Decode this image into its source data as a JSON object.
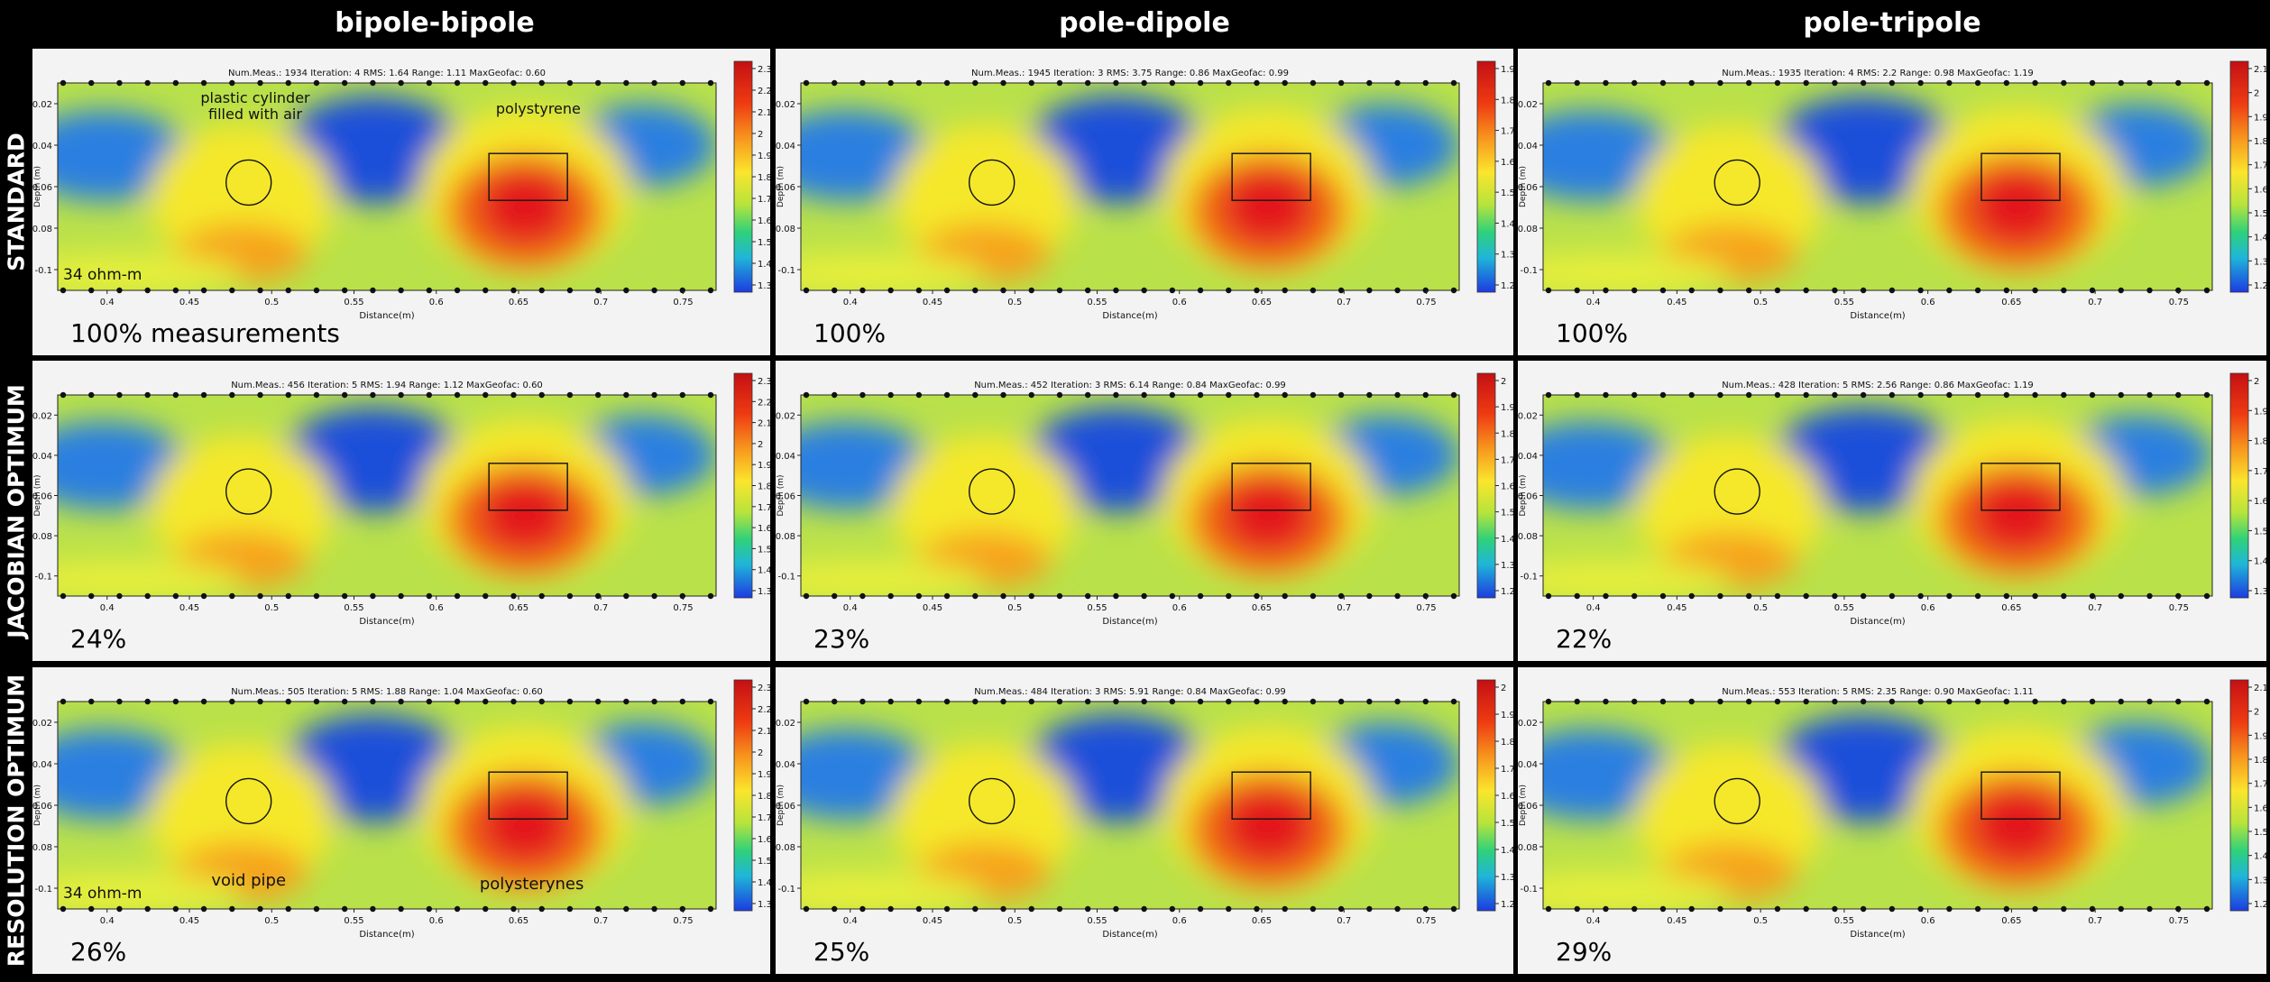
{
  "columns": [
    "bipole-bipole",
    "pole-dipole",
    "pole-tripole"
  ],
  "rows": [
    "STANDARD",
    "JACOBIAN OPTIMUM",
    "RESOLUTION OPTIMUM"
  ],
  "annotations": {
    "cylinder_line1": "plastic cylinder",
    "cylinder_line2": "filled with air",
    "polystyrene": "polystyrene",
    "void_pipe": "void pipe",
    "polysterynes": "polysterynes",
    "ohm_label": "34 ohm-m"
  },
  "colors": {
    "low": "#1f3bd9",
    "mid": "#f5e82a",
    "high": "#e3161a",
    "target_outline": "#111111"
  },
  "chart_data": [
    {
      "type": "heatmap",
      "row": "STANDARD",
      "col": "bipole-bipole",
      "title": "Num.Meas.: 1934   Iteration: 4   RMS: 1.64   Range: 1.11   MaxGeofac: 0.60",
      "percent": "100%  measurements",
      "xlabel": "Distance(m)",
      "ylabel": "Depth (m)",
      "x_ticks": [
        "0.4",
        "0.45",
        "0.5",
        "0.55",
        "0.6",
        "0.65",
        "0.7",
        "0.75"
      ],
      "y_ticks": [
        "-0.02",
        "-0.04",
        "-0.06",
        "-0.08",
        "-0.1"
      ],
      "colorbar_ticks": [
        "2.3",
        "2.2",
        "2.1",
        "2",
        "1.9",
        "1.8",
        "1.7",
        "1.6",
        "1.5",
        "1.4",
        "1.3"
      ],
      "xlim": [
        0.37,
        0.77
      ],
      "ylim": [
        -0.11,
        -0.01
      ]
    },
    {
      "type": "heatmap",
      "row": "STANDARD",
      "col": "pole-dipole",
      "title": "Num.Meas.: 1945   Iteration: 3   RMS: 3.75   Range: 0.86   MaxGeofac: 0.99",
      "percent": "100%",
      "xlabel": "Distance(m)",
      "ylabel": "Depth (m)",
      "x_ticks": [
        "0.4",
        "0.45",
        "0.5",
        "0.55",
        "0.6",
        "0.65",
        "0.7",
        "0.75"
      ],
      "y_ticks": [
        "-0.02",
        "-0.04",
        "-0.06",
        "-0.08",
        "-0.1"
      ],
      "colorbar_ticks": [
        "1.9",
        "1.8",
        "1.7",
        "1.6",
        "1.5",
        "1.4",
        "1.3",
        "1.2"
      ],
      "xlim": [
        0.37,
        0.77
      ],
      "ylim": [
        -0.11,
        -0.01
      ]
    },
    {
      "type": "heatmap",
      "row": "STANDARD",
      "col": "pole-tripole",
      "title": "Num.Meas.: 1935   Iteration: 4   RMS: 2.2   Range: 0.98   MaxGeofac: 1.19",
      "percent": "100%",
      "xlabel": "Distance(m)",
      "ylabel": "Depth (m)",
      "x_ticks": [
        "0.4",
        "0.45",
        "0.5",
        "0.55",
        "0.6",
        "0.65",
        "0.7",
        "0.75"
      ],
      "y_ticks": [
        "-0.02",
        "-0.04",
        "-0.06",
        "-0.08",
        "-0.1"
      ],
      "colorbar_ticks": [
        "2.1",
        "2",
        "1.9",
        "1.8",
        "1.7",
        "1.6",
        "1.5",
        "1.4",
        "1.3",
        "1.2"
      ],
      "xlim": [
        0.37,
        0.77
      ],
      "ylim": [
        -0.11,
        -0.01
      ]
    },
    {
      "type": "heatmap",
      "row": "JACOBIAN OPTIMUM",
      "col": "bipole-bipole",
      "title": "Num.Meas.: 456   Iteration: 5   RMS: 1.94   Range: 1.12   MaxGeofac: 0.60",
      "percent": "24%",
      "xlabel": "Distance(m)",
      "ylabel": "Depth (m)",
      "x_ticks": [
        "0.4",
        "0.45",
        "0.5",
        "0.55",
        "0.6",
        "0.65",
        "0.7",
        "0.75"
      ],
      "y_ticks": [
        "-0.02",
        "-0.04",
        "-0.06",
        "-0.08",
        "-0.1"
      ],
      "colorbar_ticks": [
        "2.3",
        "2.2",
        "2.1",
        "2",
        "1.9",
        "1.8",
        "1.7",
        "1.6",
        "1.5",
        "1.4",
        "1.3"
      ],
      "xlim": [
        0.37,
        0.77
      ],
      "ylim": [
        -0.11,
        -0.01
      ]
    },
    {
      "type": "heatmap",
      "row": "JACOBIAN OPTIMUM",
      "col": "pole-dipole",
      "title": "Num.Meas.: 452   Iteration: 3   RMS: 6.14   Range: 0.84   MaxGeofac: 0.99",
      "percent": "23%",
      "xlabel": "Distance(m)",
      "ylabel": "Depth (m)",
      "x_ticks": [
        "0.4",
        "0.45",
        "0.5",
        "0.55",
        "0.6",
        "0.65",
        "0.7",
        "0.75"
      ],
      "y_ticks": [
        "-0.02",
        "-0.04",
        "-0.06",
        "-0.08",
        "-0.1"
      ],
      "colorbar_ticks": [
        "2",
        "1.9",
        "1.8",
        "1.7",
        "1.6",
        "1.5",
        "1.4",
        "1.3",
        "1.2"
      ],
      "xlim": [
        0.37,
        0.77
      ],
      "ylim": [
        -0.11,
        -0.01
      ]
    },
    {
      "type": "heatmap",
      "row": "JACOBIAN OPTIMUM",
      "col": "pole-tripole",
      "title": "Num.Meas.: 428   Iteration: 5   RMS: 2.56   Range: 0.86   MaxGeofac: 1.19",
      "percent": "22%",
      "xlabel": "Distance(m)",
      "ylabel": "Depth (m)",
      "x_ticks": [
        "0.4",
        "0.45",
        "0.5",
        "0.55",
        "0.6",
        "0.65",
        "0.7",
        "0.75"
      ],
      "y_ticks": [
        "-0.02",
        "-0.04",
        "-0.06",
        "-0.08",
        "-0.1"
      ],
      "colorbar_ticks": [
        "2",
        "1.9",
        "1.8",
        "1.7",
        "1.6",
        "1.5",
        "1.4",
        "1.3"
      ],
      "xlim": [
        0.37,
        0.77
      ],
      "ylim": [
        -0.11,
        -0.01
      ]
    },
    {
      "type": "heatmap",
      "row": "RESOLUTION OPTIMUM",
      "col": "bipole-bipole",
      "title": "Num.Meas.: 505   Iteration: 5   RMS: 1.88   Range: 1.04   MaxGeofac: 0.60",
      "percent": "26%",
      "xlabel": "Distance(m)",
      "ylabel": "Depth (m)",
      "x_ticks": [
        "0.4",
        "0.45",
        "0.5",
        "0.55",
        "0.6",
        "0.65",
        "0.7",
        "0.75"
      ],
      "y_ticks": [
        "-0.02",
        "-0.04",
        "-0.06",
        "-0.08",
        "-0.1"
      ],
      "colorbar_ticks": [
        "2.3",
        "2.2",
        "2.1",
        "2",
        "1.9",
        "1.8",
        "1.7",
        "1.6",
        "1.5",
        "1.4",
        "1.3"
      ],
      "xlim": [
        0.37,
        0.77
      ],
      "ylim": [
        -0.11,
        -0.01
      ]
    },
    {
      "type": "heatmap",
      "row": "RESOLUTION OPTIMUM",
      "col": "pole-dipole",
      "title": "Num.Meas.: 484   Iteration: 3   RMS: 5.91   Range: 0.84   MaxGeofac: 0.99",
      "percent": "25%",
      "xlabel": "Distance(m)",
      "ylabel": "Depth (m)",
      "x_ticks": [
        "0.4",
        "0.45",
        "0.5",
        "0.55",
        "0.6",
        "0.65",
        "0.7",
        "0.75"
      ],
      "y_ticks": [
        "-0.02",
        "-0.04",
        "-0.06",
        "-0.08",
        "-0.1"
      ],
      "colorbar_ticks": [
        "2",
        "1.9",
        "1.8",
        "1.7",
        "1.6",
        "1.5",
        "1.4",
        "1.3",
        "1.2"
      ],
      "xlim": [
        0.37,
        0.77
      ],
      "ylim": [
        -0.11,
        -0.01
      ]
    },
    {
      "type": "heatmap",
      "row": "RESOLUTION OPTIMUM",
      "col": "pole-tripole",
      "title": "Num.Meas.: 553   Iteration: 5   RMS: 2.35   Range: 0.90   MaxGeofac: 1.11",
      "percent": "29%",
      "xlabel": "Distance(m)",
      "ylabel": "Depth (m)",
      "x_ticks": [
        "0.4",
        "0.45",
        "0.5",
        "0.55",
        "0.6",
        "0.65",
        "0.7",
        "0.75"
      ],
      "y_ticks": [
        "-0.02",
        "-0.04",
        "-0.06",
        "-0.08",
        "-0.1"
      ],
      "colorbar_ticks": [
        "2.1",
        "2",
        "1.9",
        "1.8",
        "1.7",
        "1.6",
        "1.5",
        "1.4",
        "1.3",
        "1.2"
      ],
      "xlim": [
        0.37,
        0.77
      ],
      "ylim": [
        -0.11,
        -0.01
      ]
    }
  ]
}
